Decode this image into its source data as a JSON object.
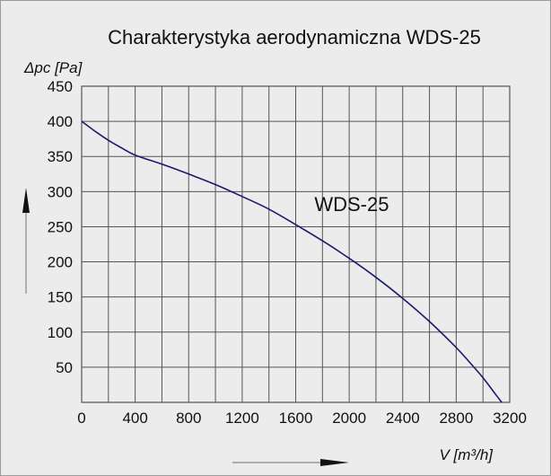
{
  "chart_data": {
    "type": "line",
    "title": "Charakterystyka aerodynamiczna  WDS-25",
    "xlabel": "V [m³/h]",
    "ylabel": "Δpc [Pa]",
    "xlim": [
      0,
      3200
    ],
    "ylim": [
      0,
      450
    ],
    "x_ticks": [
      0,
      400,
      800,
      1200,
      1600,
      2000,
      2400,
      2800,
      3200
    ],
    "y_ticks": [
      50,
      100,
      150,
      200,
      250,
      300,
      350,
      400,
      450
    ],
    "x_grid_step": 200,
    "y_grid_step": 50,
    "grid": true,
    "colors": {
      "curve": "#1a1a6e",
      "grid": "#555555",
      "background": "#ececec"
    },
    "series": [
      {
        "name": "WDS-25",
        "x": [
          0,
          100,
          200,
          300,
          400,
          600,
          800,
          1000,
          1200,
          1400,
          1600,
          1800,
          2000,
          2200,
          2400,
          2600,
          2800,
          2900,
          3000,
          3100,
          3140
        ],
        "y": [
          400,
          386,
          373,
          362,
          352,
          339,
          325,
          310,
          293,
          275,
          253,
          230,
          205,
          178,
          148,
          115,
          78,
          57,
          35,
          10,
          0
        ]
      }
    ]
  }
}
